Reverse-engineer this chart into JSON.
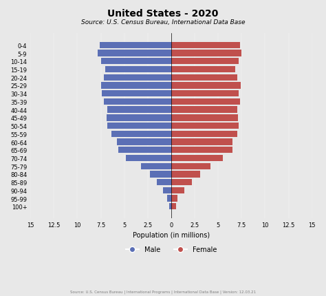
{
  "title": "United States - 2020",
  "subtitle": "Source: U.S. Census Bureau, International Data Base",
  "source_note": "Source: U.S. Census Bureau | International Programs | International Data Base | Version: 12.03.21",
  "xlabel": "Population (in millions)",
  "age_groups": [
    "100+",
    "95-99",
    "90-94",
    "85-89",
    "80-84",
    "75-79",
    "70-74",
    "65-69",
    "60-64",
    "55-59",
    "50-54",
    "45-49",
    "40-44",
    "35-39",
    "30-34",
    "25-29",
    "20-24",
    "15-19",
    "10-14",
    "5-9",
    "0-4"
  ],
  "male": [
    0.2,
    0.4,
    0.9,
    1.5,
    2.3,
    3.2,
    4.8,
    5.6,
    5.8,
    6.4,
    6.8,
    6.9,
    6.8,
    7.2,
    7.4,
    7.5,
    7.2,
    7.0,
    7.5,
    7.8,
    7.6
  ],
  "female": [
    0.5,
    0.7,
    1.4,
    2.2,
    3.1,
    4.2,
    5.5,
    6.5,
    6.5,
    7.0,
    7.2,
    7.1,
    7.0,
    7.3,
    7.2,
    7.4,
    7.0,
    6.8,
    7.2,
    7.5,
    7.3
  ],
  "male_color": "#5b6fb5",
  "female_color": "#c0504d",
  "xlim": 15,
  "xticks": [
    -15,
    -12.5,
    -10,
    -7.5,
    -5,
    -2.5,
    0,
    2.5,
    5,
    7.5,
    10,
    12.5,
    15
  ],
  "xtick_labels": [
    "15",
    "12.5",
    "10",
    "7.5",
    "5",
    "2.5",
    "0",
    "2.5",
    "5",
    "7.5",
    "10",
    "12.5",
    "15"
  ],
  "background_color": "#e8e8e8",
  "title_fontsize": 10,
  "subtitle_fontsize": 6.5,
  "label_fontsize": 7,
  "tick_fontsize": 6
}
